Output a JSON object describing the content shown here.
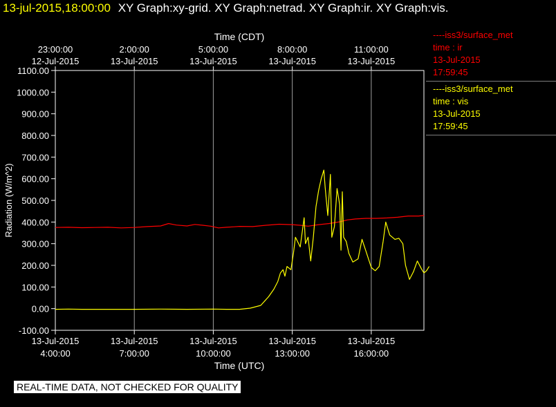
{
  "header": {
    "timestamp": "13-jul-2015,18:00:00",
    "titles": "XY Graph:xy-grid.  XY Graph:netrad.  XY Graph:ir.  XY Graph:vis."
  },
  "legend": [
    {
      "name": "----iss3/surface_met",
      "var": "time : ir",
      "date": "13-Jul-2015",
      "time": "17:59:45",
      "color": "#ff0000"
    },
    {
      "name": "----iss3/surface_met",
      "var": "time : vis",
      "date": "13-Jul-2015",
      "time": "17:59:45",
      "color": "#ffff00"
    }
  ],
  "disclaimer": "REAL-TIME DATA, NOT CHECKED FOR QUALITY",
  "chart_data": {
    "type": "line",
    "ylabel": "Radiation (W/m^2)",
    "xlabel_bottom": "Time (UTC)",
    "xlabel_top": "Time (CDT)",
    "x_unit": "hours UTC on 13-Jul-2015",
    "xlim": [
      4.0,
      18.0
    ],
    "ylim": [
      -100,
      1100
    ],
    "yticks": [
      -100,
      0,
      100,
      200,
      300,
      400,
      500,
      600,
      700,
      800,
      900,
      1000,
      1100
    ],
    "ytick_labels": [
      "-100.00",
      "0.00",
      "100.00",
      "200.00",
      "300.00",
      "400.00",
      "500.00",
      "600.00",
      "700.00",
      "800.00",
      "900.00",
      "1000.00",
      "1100.00"
    ],
    "bottom_ticks": [
      {
        "x": 4,
        "line1": "13-Jul-2015",
        "line2": "4:00:00"
      },
      {
        "x": 7,
        "line1": "13-Jul-2015",
        "line2": "7:00:00"
      },
      {
        "x": 10,
        "line1": "13-Jul-2015",
        "line2": "10:00:00"
      },
      {
        "x": 13,
        "line1": "13-Jul-2015",
        "line2": "13:00:00"
      },
      {
        "x": 16,
        "line1": "13-Jul-2015",
        "line2": "16:00:00"
      }
    ],
    "top_ticks": [
      {
        "x": 4,
        "line1": "23:00:00",
        "line2": "12-Jul-2015"
      },
      {
        "x": 7,
        "line1": "2:00:00",
        "line2": "13-Jul-2015"
      },
      {
        "x": 10,
        "line1": "5:00:00",
        "line2": "13-Jul-2015"
      },
      {
        "x": 13,
        "line1": "8:00:00",
        "line2": "13-Jul-2015"
      },
      {
        "x": 16,
        "line1": "11:00:00",
        "line2": "13-Jul-2015"
      }
    ],
    "grid": {
      "vertical": true,
      "horizontal": false,
      "color": "#a0a0a0"
    },
    "series": [
      {
        "name": "----iss3/surface_met time : ir",
        "color": "#ff0000",
        "points": [
          [
            4.0,
            375
          ],
          [
            4.5,
            376
          ],
          [
            5.0,
            374
          ],
          [
            5.5,
            375
          ],
          [
            6.0,
            376
          ],
          [
            6.5,
            373
          ],
          [
            7.0,
            375
          ],
          [
            7.5,
            379
          ],
          [
            8.0,
            382
          ],
          [
            8.3,
            393
          ],
          [
            8.6,
            386
          ],
          [
            9.0,
            382
          ],
          [
            9.3,
            389
          ],
          [
            9.6,
            385
          ],
          [
            9.9,
            381
          ],
          [
            10.2,
            373
          ],
          [
            10.5,
            376
          ],
          [
            10.8,
            378
          ],
          [
            11.0,
            380
          ],
          [
            11.5,
            379
          ],
          [
            12.0,
            385
          ],
          [
            12.5,
            390
          ],
          [
            13.0,
            388
          ],
          [
            13.3,
            385
          ],
          [
            13.6,
            381
          ],
          [
            14.0,
            388
          ],
          [
            14.4,
            393
          ],
          [
            14.8,
            401
          ],
          [
            15.1,
            410
          ],
          [
            15.4,
            414
          ],
          [
            15.8,
            417
          ],
          [
            16.2,
            417
          ],
          [
            16.6,
            419
          ],
          [
            17.0,
            422
          ],
          [
            17.4,
            428
          ],
          [
            17.8,
            428
          ],
          [
            18.0,
            430
          ]
        ]
      },
      {
        "name": "----iss3/surface_met time : vis",
        "color": "#ffff00",
        "points": [
          [
            4.0,
            -3
          ],
          [
            4.5,
            -2
          ],
          [
            5.0,
            -3
          ],
          [
            6.0,
            -3
          ],
          [
            7.0,
            -3
          ],
          [
            8.0,
            -2
          ],
          [
            9.0,
            -3
          ],
          [
            10.0,
            -2
          ],
          [
            10.5,
            -3
          ],
          [
            11.0,
            -3
          ],
          [
            11.4,
            2
          ],
          [
            11.8,
            15
          ],
          [
            12.1,
            55
          ],
          [
            12.3,
            90
          ],
          [
            12.45,
            125
          ],
          [
            12.55,
            165
          ],
          [
            12.65,
            180
          ],
          [
            12.72,
            150
          ],
          [
            12.8,
            195
          ],
          [
            12.95,
            180
          ],
          [
            13.05,
            260
          ],
          [
            13.12,
            330
          ],
          [
            13.2,
            310
          ],
          [
            13.3,
            285
          ],
          [
            13.4,
            375
          ],
          [
            13.45,
            420
          ],
          [
            13.5,
            300
          ],
          [
            13.6,
            330
          ],
          [
            13.7,
            220
          ],
          [
            13.8,
            330
          ],
          [
            13.9,
            470
          ],
          [
            14.0,
            545
          ],
          [
            14.1,
            600
          ],
          [
            14.2,
            640
          ],
          [
            14.25,
            560
          ],
          [
            14.35,
            430
          ],
          [
            14.45,
            620
          ],
          [
            14.5,
            330
          ],
          [
            14.6,
            380
          ],
          [
            14.7,
            555
          ],
          [
            14.8,
            480
          ],
          [
            14.85,
            270
          ],
          [
            14.9,
            540
          ],
          [
            14.95,
            330
          ],
          [
            15.05,
            310
          ],
          [
            15.15,
            255
          ],
          [
            15.3,
            215
          ],
          [
            15.5,
            230
          ],
          [
            15.65,
            320
          ],
          [
            15.8,
            265
          ],
          [
            16.0,
            190
          ],
          [
            16.15,
            175
          ],
          [
            16.3,
            195
          ],
          [
            16.45,
            310
          ],
          [
            16.55,
            400
          ],
          [
            16.7,
            340
          ],
          [
            16.9,
            320
          ],
          [
            17.05,
            325
          ],
          [
            17.2,
            300
          ],
          [
            17.3,
            200
          ],
          [
            17.45,
            135
          ],
          [
            17.6,
            170
          ],
          [
            17.75,
            220
          ],
          [
            17.9,
            185
          ],
          [
            18.0,
            165
          ],
          [
            18.1,
            175
          ],
          [
            18.2,
            195
          ]
        ]
      }
    ]
  }
}
